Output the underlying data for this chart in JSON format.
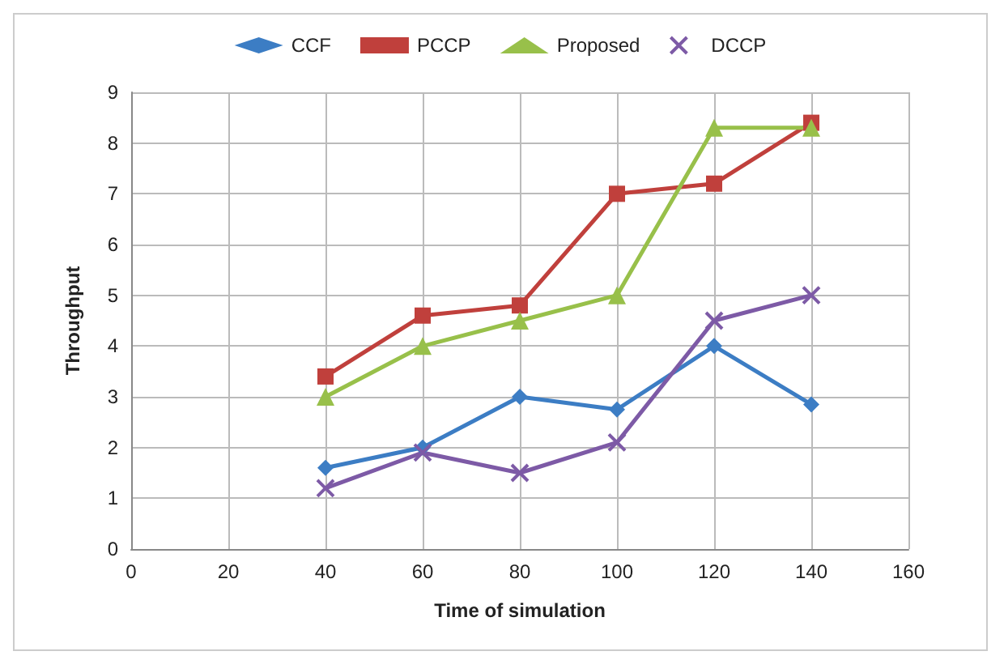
{
  "chart_data": {
    "type": "line",
    "xlabel": "Time of simulation",
    "ylabel": "Throughput",
    "x": [
      40,
      60,
      80,
      100,
      120,
      140
    ],
    "xlim": [
      0,
      160
    ],
    "xticks": [
      0,
      20,
      40,
      60,
      80,
      100,
      120,
      140,
      160
    ],
    "ylim": [
      0,
      9
    ],
    "yticks": [
      0,
      1,
      2,
      3,
      4,
      5,
      6,
      7,
      8,
      9
    ],
    "grid": true,
    "legend": "top",
    "line_style": "solid",
    "series": [
      {
        "name": "CCF",
        "color": "#3c7dc4",
        "marker": "diamond",
        "values": [
          1.6,
          2.0,
          3.0,
          2.75,
          4.0,
          2.85
        ]
      },
      {
        "name": "PCCP",
        "color": "#c0403c",
        "marker": "square",
        "values": [
          3.4,
          4.6,
          4.8,
          7.0,
          7.2,
          8.4
        ]
      },
      {
        "name": "Proposed",
        "color": "#98c04a",
        "marker": "triangle",
        "values": [
          3.0,
          4.0,
          4.5,
          5.0,
          8.3,
          8.3
        ]
      },
      {
        "name": "DCCP",
        "color": "#7d5aa6",
        "marker": "cross",
        "values": [
          1.2,
          1.9,
          1.5,
          2.1,
          4.5,
          5.0
        ]
      }
    ]
  }
}
